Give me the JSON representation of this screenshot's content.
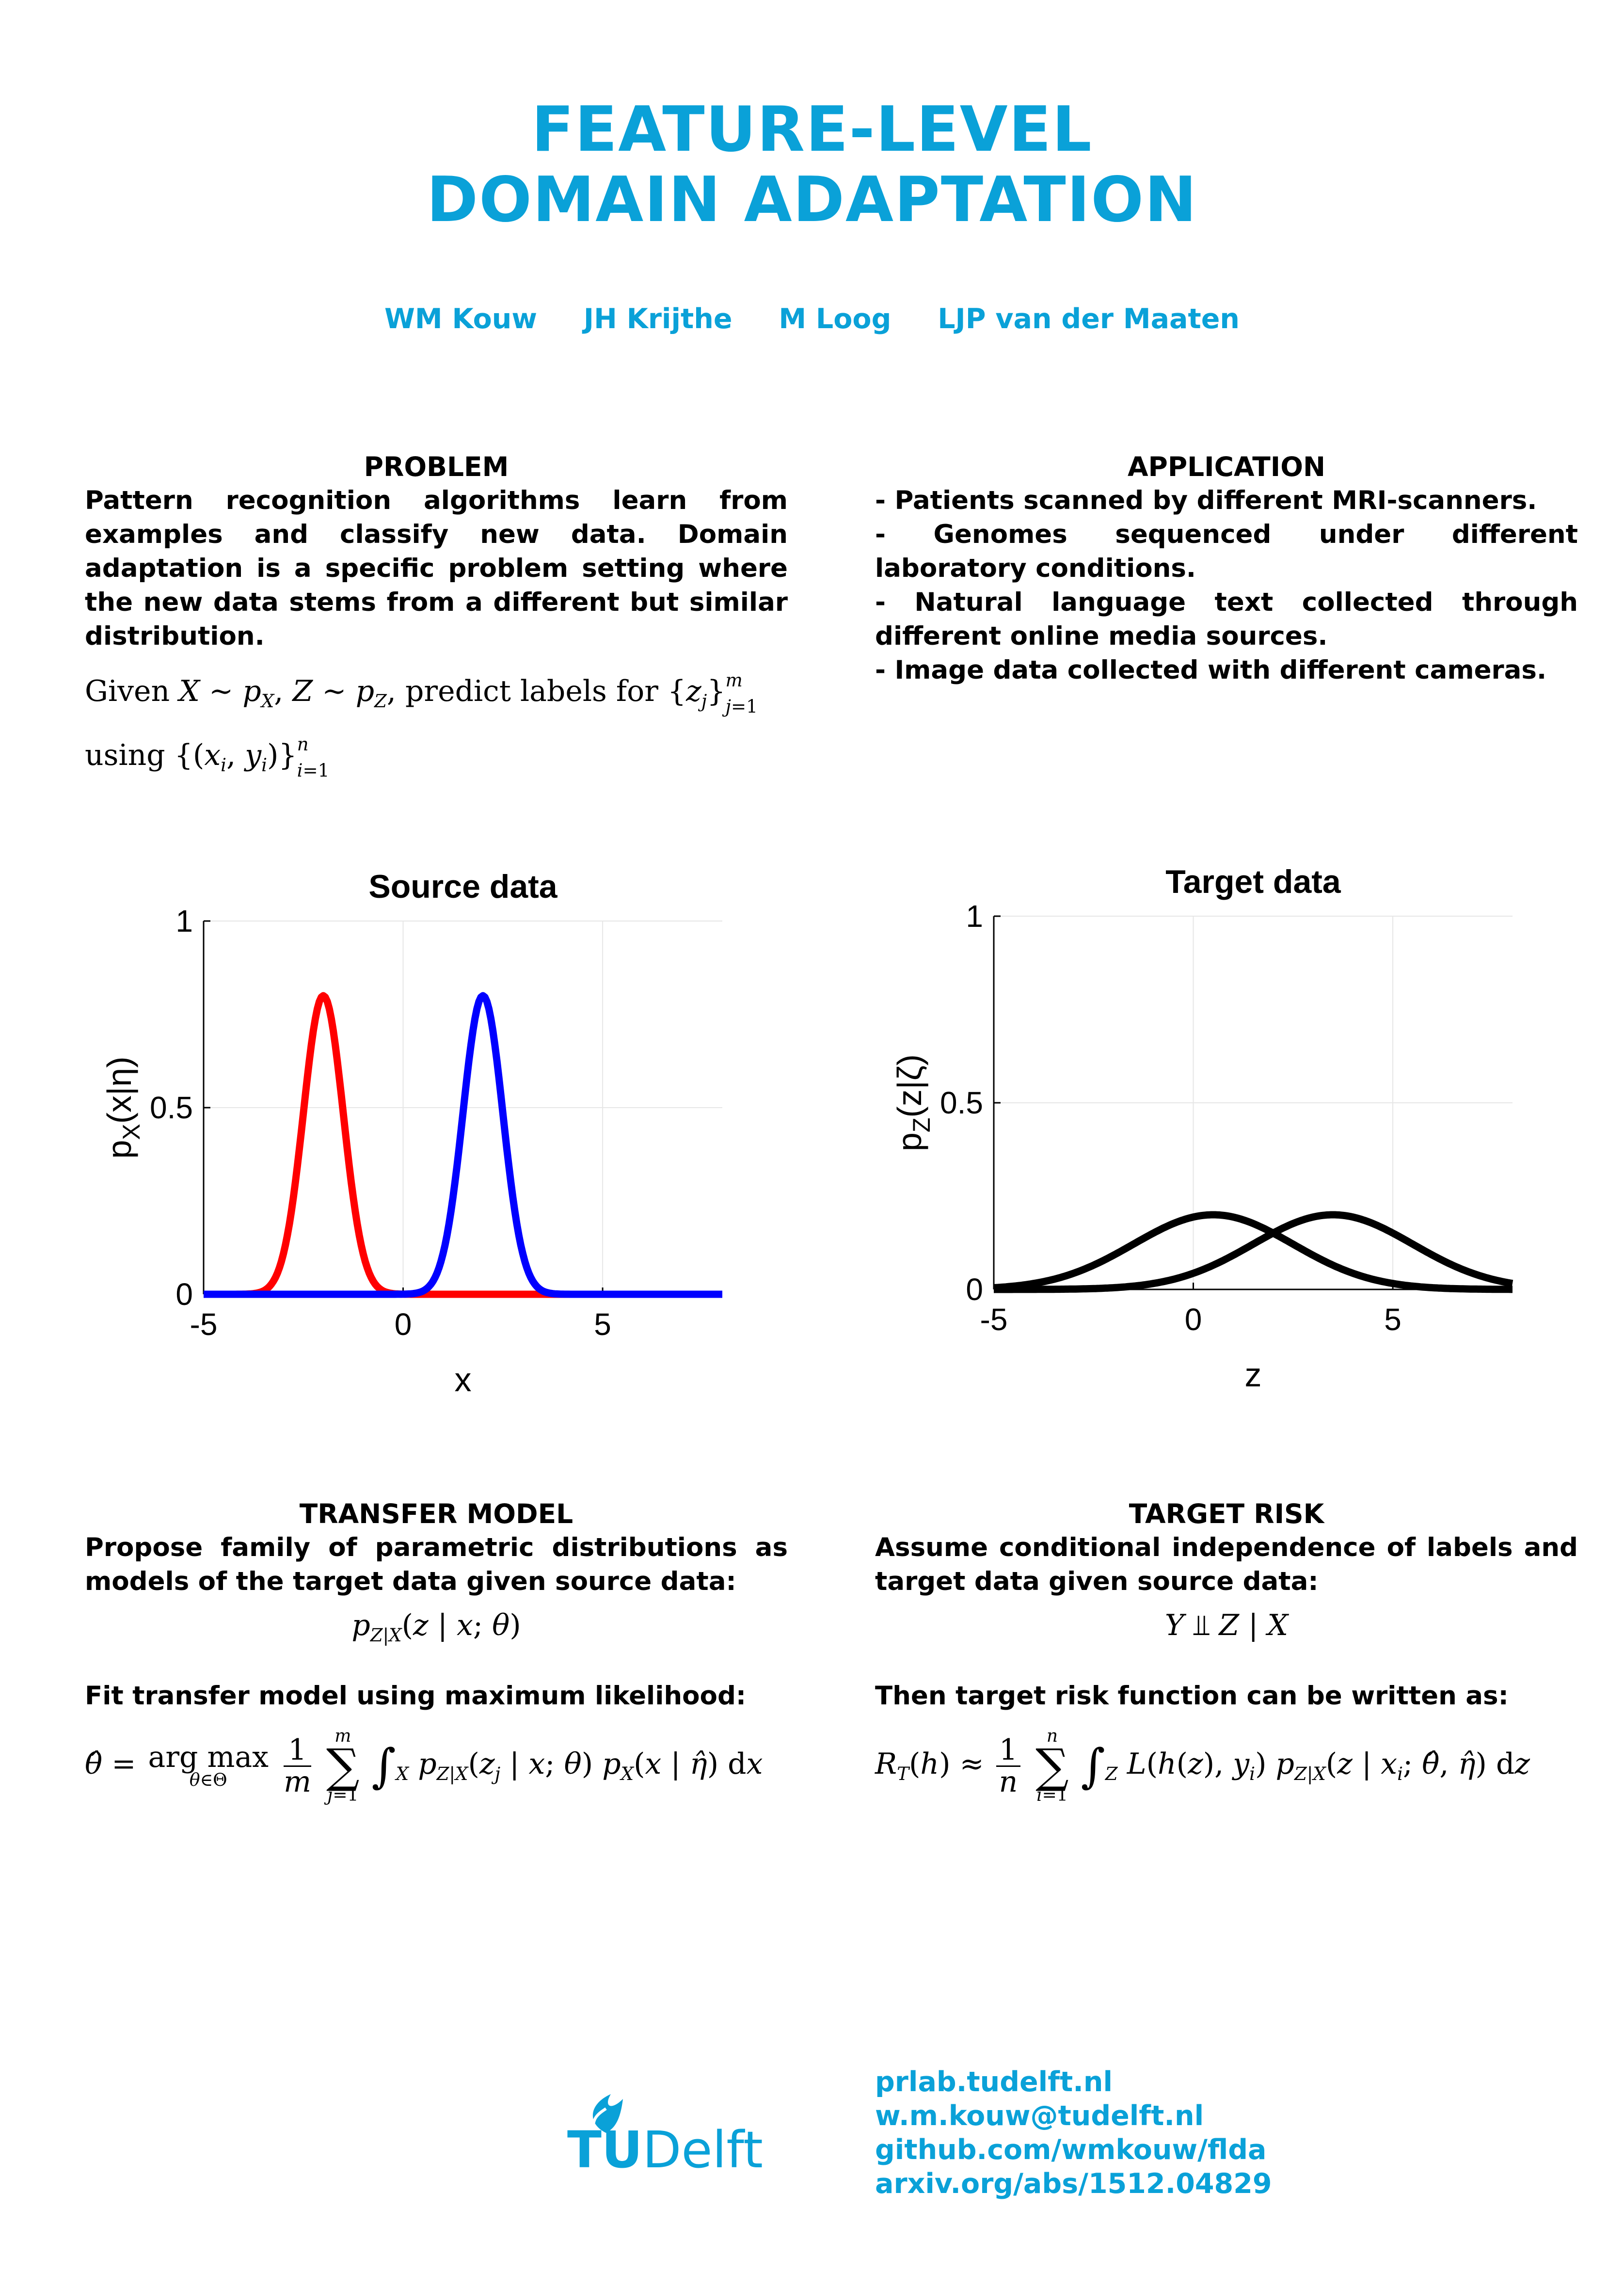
{
  "title": {
    "line1": "FEATURE-LEVEL",
    "line2": "DOMAIN ADAPTATION"
  },
  "authors": [
    "WM Kouw",
    "JH Krijthe",
    "M Loog",
    "LJP van der Maaten"
  ],
  "colors": {
    "accent": "#0aa1d8",
    "series_red": "#ff0000",
    "series_blue": "#0000ff",
    "series_black": "#000000"
  },
  "problem": {
    "heading": "PROBLEM",
    "text": "Pattern recognition algorithms learn from examples and classify new data. Domain adaptation is a specific problem setting where the new data stems from a different but similar distribution.",
    "math_text": "Given X ∼ p_X, Z ∼ p_Z, predict labels for {z_j}_{j=1}^m using {(x_i, y_i)}_{i=1}^n"
  },
  "application": {
    "heading": "APPLICATION",
    "items": [
      "- Patients scanned by different MRI-scanners.",
      "- Genomes sequenced under different laboratory conditions.",
      "- Natural language text collected through different online media sources.",
      "- Image data collected with different cameras."
    ]
  },
  "chart_data": [
    {
      "type": "line",
      "title": "Source data",
      "xlabel": "x",
      "ylabel": "p_X(x|η)",
      "xlim": [
        -5,
        8
      ],
      "ylim": [
        0,
        1
      ],
      "xticks": [
        "-5",
        "0",
        "5"
      ],
      "yticks": [
        "0",
        "0.5",
        "1"
      ],
      "grid": true,
      "series": [
        {
          "color": "#ff0000",
          "shape": "gaussian",
          "mean": -2,
          "std": 0.5,
          "peak": 0.8
        },
        {
          "color": "#0000ff",
          "shape": "gaussian",
          "mean": 2,
          "std": 0.5,
          "peak": 0.8
        }
      ]
    },
    {
      "type": "line",
      "title": "Target data",
      "xlabel": "z",
      "ylabel": "p_Z(z|ζ)",
      "xlim": [
        -5,
        8
      ],
      "ylim": [
        0,
        1
      ],
      "xticks": [
        "-5",
        "0",
        "5"
      ],
      "yticks": [
        "0",
        "0.5",
        "1"
      ],
      "grid": true,
      "series": [
        {
          "color": "#000000",
          "shape": "gaussian",
          "mean": 0.5,
          "std": 2,
          "peak": 0.2
        },
        {
          "color": "#000000",
          "shape": "gaussian",
          "mean": 3.5,
          "std": 2,
          "peak": 0.2
        }
      ]
    }
  ],
  "transfer_model": {
    "heading": "TRANSFER MODEL",
    "text": "Propose family of parametric distributions as models of the target data given source data:",
    "equation1": "p_{Z|X}(z | x; θ)",
    "text2": "Fit transfer model using maximum likelihood:",
    "equation2": "θ̂ = argmax_{θ∈Θ} (1/m) Σ_{j=1}^m ∫_X p_{Z|X}(z_j | x; θ) p_X(x | η̂) dx"
  },
  "target_risk": {
    "heading": "TARGET RISK",
    "text": "Assume conditional independence of labels and target data given source data:",
    "equation1": "Y ⫫ Z | X",
    "text2": "Then target risk function can be written as:",
    "equation2": "R_T(h) ≈ (1/n) Σ_{i=1}^n ∫_Z L(h(z), y_i) p_{Z|X}(z | x_i; θ̂, η̂) dz"
  },
  "logo": {
    "text_tu": "TU",
    "text_delft": "Delft"
  },
  "links": [
    "prlab.tudelft.nl",
    "w.m.kouw@tudelft.nl",
    "github.com/wmkouw/flda",
    "arxiv.org/abs/1512.04829"
  ]
}
